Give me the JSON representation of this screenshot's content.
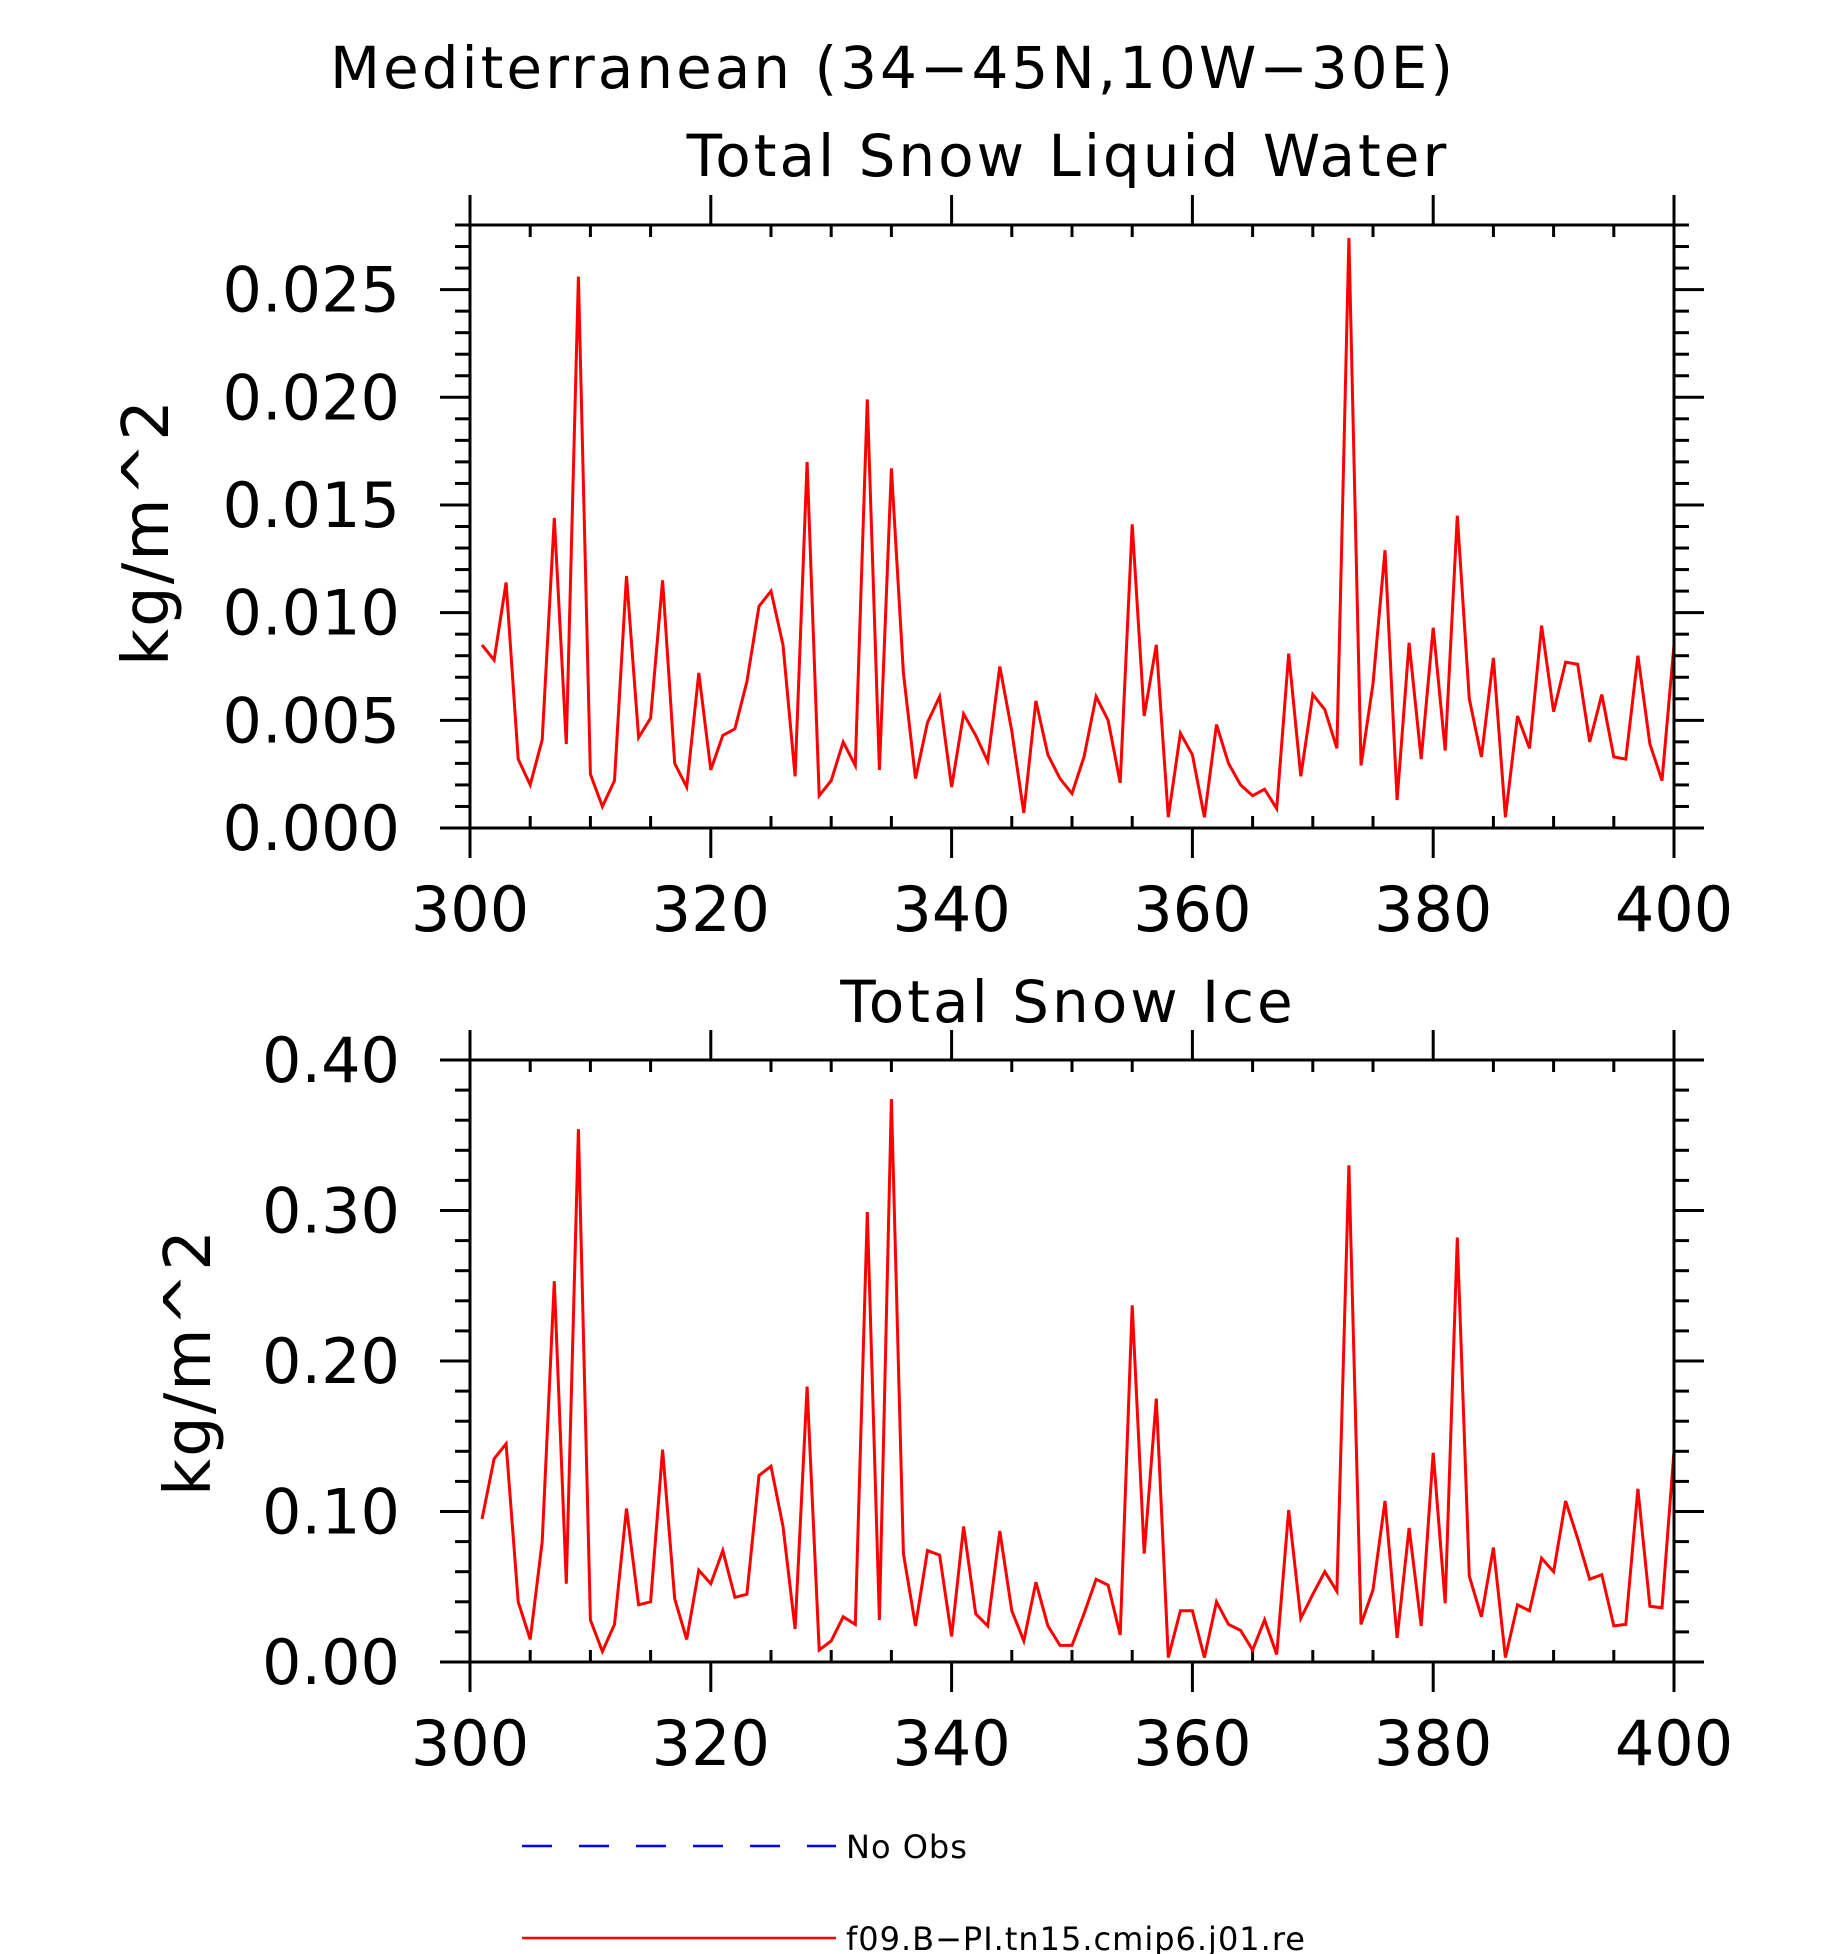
{
  "figure": {
    "title": "Mediterranean (34−45N,10W−30E)"
  },
  "chart_data": [
    {
      "type": "line",
      "title": "Total Snow Liquid Water",
      "xlabel": "",
      "ylabel": "kg/m^2",
      "xlim": [
        300,
        400
      ],
      "ylim": [
        0,
        0.028
      ],
      "xticks": [
        300,
        320,
        340,
        360,
        380,
        400
      ],
      "xtick_labels": [
        "300",
        "320",
        "340",
        "360",
        "380",
        "400"
      ],
      "yticks": [
        0,
        0.005,
        0.01,
        0.015,
        0.02,
        0.025
      ],
      "ytick_labels": [
        "0.000",
        "0.005",
        "0.010",
        "0.015",
        "0.020",
        "0.025"
      ],
      "grid": false,
      "series": [
        {
          "name": "f09.B−PI.tn15.cmip6.j01.re",
          "color": "#ff0000",
          "x_start": 301,
          "x_step": 1,
          "values": [
            0.0085,
            0.0078,
            0.0114,
            0.0032,
            0.002,
            0.0041,
            0.0144,
            0.0039,
            0.0256,
            0.0025,
            0.001,
            0.0022,
            0.0117,
            0.0042,
            0.0051,
            0.0115,
            0.003,
            0.0019,
            0.0072,
            0.0027,
            0.0043,
            0.0046,
            0.0068,
            0.0103,
            0.011,
            0.0085,
            0.0024,
            0.017,
            0.0015,
            0.0022,
            0.004,
            0.0029,
            0.0199,
            0.0027,
            0.0167,
            0.0072,
            0.0023,
            0.0049,
            0.0061,
            0.0019,
            0.0053,
            0.0043,
            0.0031,
            0.0075,
            0.0045,
            0.0007,
            0.0059,
            0.0034,
            0.0023,
            0.0016,
            0.0033,
            0.0061,
            0.005,
            0.0021,
            0.0141,
            0.0052,
            0.0085,
            0.0005,
            0.0044,
            0.0034,
            0.0005,
            0.0048,
            0.003,
            0.002,
            0.0015,
            0.0018,
            0.0009,
            0.0081,
            0.0024,
            0.0062,
            0.0055,
            0.0037,
            0.0274,
            0.0029,
            0.0067,
            0.0129,
            0.0013,
            0.0086,
            0.0032,
            0.0093,
            0.0036,
            0.0145,
            0.006,
            0.0033,
            0.0079,
            0.0005,
            0.0052,
            0.0037,
            0.0094,
            0.0054,
            0.0077,
            0.0076,
            0.004,
            0.0062,
            0.0033,
            0.0032,
            0.008,
            0.0039,
            0.0022,
            0.0085
          ]
        }
      ]
    },
    {
      "type": "line",
      "title": "Total Snow Ice",
      "xlabel": "",
      "ylabel": "kg/m^2",
      "xlim": [
        300,
        400
      ],
      "ylim": [
        0,
        0.4
      ],
      "xticks": [
        300,
        320,
        340,
        360,
        380,
        400
      ],
      "xtick_labels": [
        "300",
        "320",
        "340",
        "360",
        "380",
        "400"
      ],
      "yticks": [
        0,
        0.1,
        0.2,
        0.3,
        0.4
      ],
      "ytick_labels": [
        "0.00",
        "0.10",
        "0.20",
        "0.30",
        "0.40"
      ],
      "grid": false,
      "series": [
        {
          "name": "f09.B−PI.tn15.cmip6.j01.re",
          "color": "#ff0000",
          "x_start": 301,
          "x_step": 1,
          "values": [
            0.095,
            0.135,
            0.145,
            0.04,
            0.015,
            0.08,
            0.253,
            0.052,
            0.354,
            0.028,
            0.007,
            0.025,
            0.102,
            0.038,
            0.04,
            0.141,
            0.042,
            0.015,
            0.061,
            0.052,
            0.074,
            0.043,
            0.045,
            0.124,
            0.13,
            0.09,
            0.022,
            0.183,
            0.008,
            0.014,
            0.03,
            0.025,
            0.299,
            0.028,
            0.374,
            0.072,
            0.024,
            0.074,
            0.071,
            0.017,
            0.09,
            0.032,
            0.024,
            0.087,
            0.034,
            0.014,
            0.053,
            0.024,
            0.011,
            0.011,
            0.032,
            0.055,
            0.051,
            0.018,
            0.237,
            0.072,
            0.175,
            0.003,
            0.034,
            0.034,
            0.003,
            0.04,
            0.025,
            0.021,
            0.008,
            0.028,
            0.005,
            0.101,
            0.029,
            0.045,
            0.06,
            0.047,
            0.33,
            0.025,
            0.048,
            0.107,
            0.016,
            0.089,
            0.024,
            0.139,
            0.039,
            0.282,
            0.057,
            0.03,
            0.076,
            0.003,
            0.038,
            0.034,
            0.069,
            0.06,
            0.107,
            0.082,
            0.055,
            0.058,
            0.024,
            0.025,
            0.115,
            0.037,
            0.036,
            0.14
          ]
        }
      ]
    }
  ],
  "legend": {
    "placement": "bottom",
    "entries": [
      {
        "label": "No Obs",
        "color": "#0000ff",
        "style": "dashed"
      },
      {
        "label": "f09.B−PI.tn15.cmip6.j01.re",
        "color": "#ff0000",
        "style": "solid"
      }
    ]
  }
}
